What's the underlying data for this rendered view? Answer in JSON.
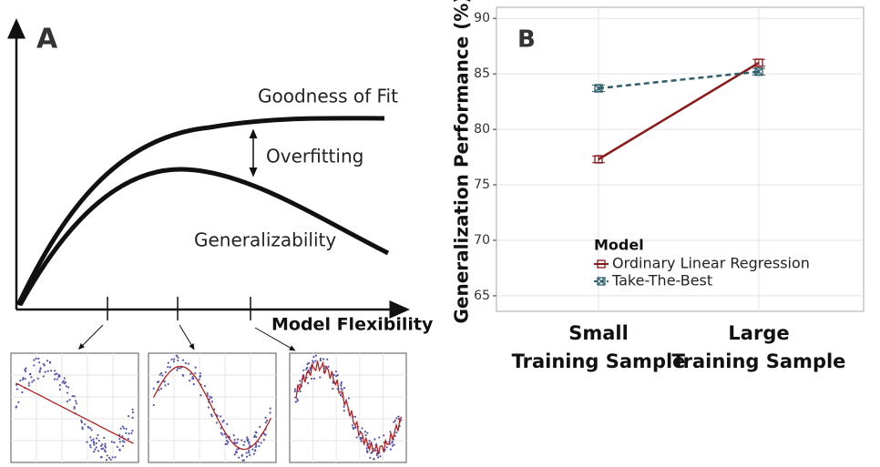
{
  "panel_a": {
    "label": "A",
    "upper_curve": "Goodness of Fit",
    "gap": "Overfitting",
    "lower_curve": "Generalizability",
    "x_axis": "Model Flexibility"
  },
  "chart_data": {
    "type": "line",
    "title": "B",
    "ylabel": "Generalization Performance (%)",
    "categories": [
      "Small\nTraining Sample",
      "Large\nTraining Sample"
    ],
    "series": [
      {
        "name": "Ordinary Linear Regression",
        "color": "#8b1a1a",
        "dash": false,
        "marker": "square",
        "values": [
          77.3,
          86.0
        ],
        "errors": [
          0.3,
          0.3
        ]
      },
      {
        "name": "Take-The-Best",
        "color": "#2f5f6a",
        "dash": true,
        "marker": "square-x",
        "values": [
          83.7,
          85.2
        ],
        "errors": [
          0.3,
          0.3
        ]
      }
    ],
    "legend_title": "Model",
    "legend": "lower-center",
    "ylim": [
      63.6,
      91
    ],
    "yticks": [
      65,
      70,
      75,
      80,
      85,
      90
    ],
    "grid": true
  }
}
